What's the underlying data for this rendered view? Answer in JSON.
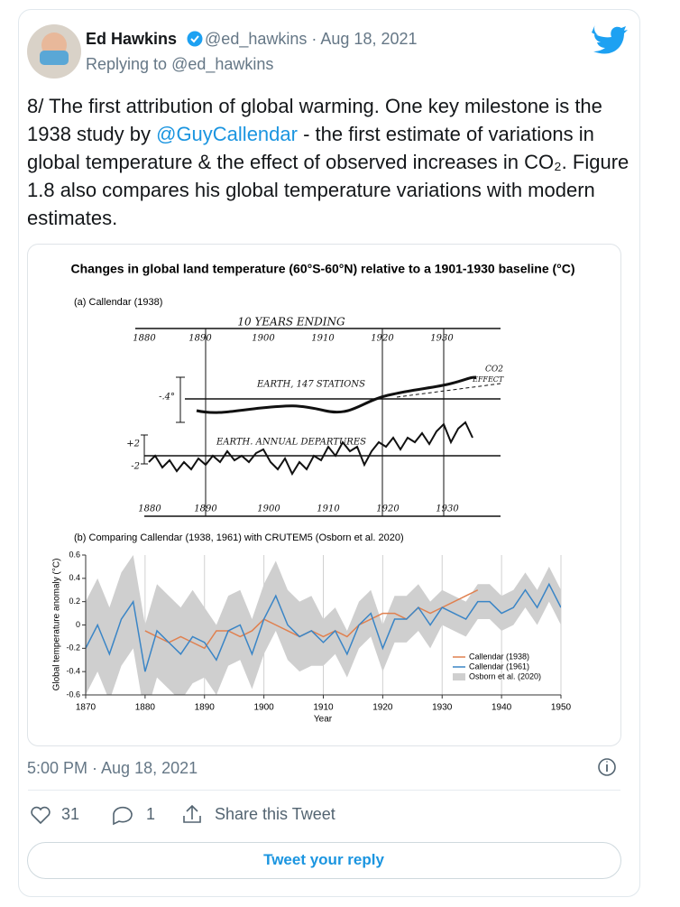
{
  "tweet": {
    "author_name": "Ed Hawkins",
    "handle": "@ed_hawkins",
    "separator": "·",
    "date": "Aug 18, 2021",
    "replying_to_label": "Replying to",
    "replying_to": "@ed_hawkins",
    "text_before": "8/ The first attribution of global warming. One key milestone is the 1938 study by ",
    "mention": "@GuyCallendar",
    "text_after": " - the first estimate of variations in global temperature & the effect of observed increases in CO₂. Figure 1.8 also compares his global temperature variations with modern estimates.",
    "timestamp": "5:00 PM · Aug 18, 2021",
    "likes": 31,
    "replies": 1,
    "share_label": "Share this Tweet",
    "reply_button": "Tweet your reply"
  },
  "figure": {
    "title": "Changes in global land temperature (60°S-60°N) relative to a 1901-1930 baseline (°C)",
    "panel_a": {
      "title": "(a) Callendar (1938)",
      "top_axis_label": "10 YEARS ENDING",
      "top_ticks": [
        "1880",
        "1890",
        "1900",
        "1910",
        "1920",
        "1930"
      ],
      "upper_curve_label": "EARTH, 147 STATIONS",
      "co2_label": "CO2",
      "effect_label": "EFFECT",
      "upper_scale": "-.4°",
      "lower_curve_label": "EARTH. ANNUAL DEPARTURES",
      "lower_scale_plus": "+2",
      "lower_scale_minus": "-2",
      "bottom_ticks": [
        "1880",
        "1890",
        "1900",
        "1910",
        "1920",
        "1930"
      ]
    }
  },
  "chart_data": {
    "type": "line",
    "title": "(b) Comparing Callendar (1938, 1961) with CRUTEM5 (Osborn et al. 2020)",
    "y_label": "Global temperature anomaly (°C)",
    "x_label": "Year",
    "x": [
      1870,
      1872,
      1874,
      1876,
      1878,
      1880,
      1882,
      1884,
      1886,
      1888,
      1890,
      1892,
      1894,
      1896,
      1898,
      1900,
      1902,
      1904,
      1906,
      1908,
      1910,
      1912,
      1914,
      1916,
      1918,
      1920,
      1922,
      1924,
      1926,
      1928,
      1930,
      1932,
      1934,
      1936,
      1938,
      1940,
      1942,
      1944,
      1946,
      1948,
      1950
    ],
    "xlim": [
      1870,
      1950
    ],
    "xticks": [
      1870,
      1880,
      1890,
      1900,
      1910,
      1920,
      1930,
      1940,
      1950
    ],
    "ylim": [
      -0.6,
      0.6
    ],
    "yticks": [
      0.6,
      0.4,
      0.2,
      0,
      -0.2,
      -0.4,
      -0.6
    ],
    "grid": true,
    "legend": "lower right",
    "band": {
      "name": "Osborn et al. (2020)",
      "color": "#cfcfcf",
      "lower": [
        -0.6,
        -0.4,
        -0.65,
        -0.35,
        -0.2,
        -0.8,
        -0.45,
        -0.55,
        -0.65,
        -0.5,
        -0.45,
        -0.6,
        -0.35,
        -0.3,
        -0.55,
        -0.25,
        -0.05,
        -0.3,
        -0.4,
        -0.35,
        -0.35,
        -0.25,
        -0.45,
        -0.2,
        -0.1,
        -0.4,
        -0.15,
        -0.15,
        -0.05,
        -0.2,
        0.0,
        -0.05,
        -0.1,
        0.05,
        0.05,
        -0.05,
        0.0,
        0.15,
        0.0,
        0.2,
        0.0
      ],
      "upper": [
        0.2,
        0.4,
        0.15,
        0.45,
        0.6,
        0.0,
        0.35,
        0.25,
        0.15,
        0.3,
        0.15,
        0.0,
        0.25,
        0.3,
        0.05,
        0.35,
        0.55,
        0.3,
        0.2,
        0.25,
        0.05,
        0.15,
        -0.05,
        0.2,
        0.3,
        0.0,
        0.25,
        0.25,
        0.35,
        0.2,
        0.3,
        0.25,
        0.2,
        0.35,
        0.35,
        0.25,
        0.3,
        0.45,
        0.3,
        0.5,
        0.3
      ]
    },
    "series": [
      {
        "name": "Callendar (1938)",
        "color": "#e0804f",
        "values": [
          null,
          null,
          null,
          null,
          null,
          -0.05,
          -0.1,
          -0.15,
          -0.1,
          -0.15,
          -0.2,
          -0.05,
          -0.05,
          -0.1,
          -0.05,
          0.05,
          0.0,
          -0.05,
          -0.1,
          -0.05,
          -0.1,
          -0.05,
          -0.1,
          0.0,
          0.05,
          0.1,
          0.1,
          0.05,
          0.15,
          0.1,
          0.15,
          0.2,
          0.25,
          0.3,
          null,
          null,
          null,
          null,
          null,
          null,
          null
        ]
      },
      {
        "name": "Callendar (1961)",
        "color": "#3a85c6",
        "values": [
          -0.2,
          0.0,
          -0.25,
          0.05,
          0.2,
          -0.4,
          -0.05,
          -0.15,
          -0.25,
          -0.1,
          -0.15,
          -0.3,
          -0.05,
          0.0,
          -0.25,
          0.05,
          0.25,
          0.0,
          -0.1,
          -0.05,
          -0.15,
          -0.05,
          -0.25,
          0.0,
          0.1,
          -0.2,
          0.05,
          0.05,
          0.15,
          0.0,
          0.15,
          0.1,
          0.05,
          0.2,
          0.2,
          0.1,
          0.15,
          0.3,
          0.15,
          0.35,
          0.15
        ]
      }
    ]
  }
}
